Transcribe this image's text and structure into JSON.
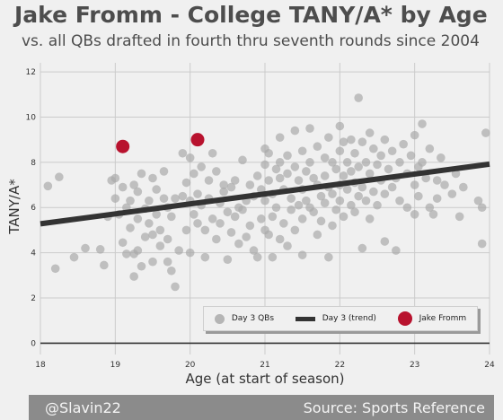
{
  "header": {
    "title": "Jake Fromm - College TANY/A* by Age",
    "subtitle": "vs. all QBs drafted in fourth thru seventh rounds since 2004"
  },
  "footer": {
    "handle": "@Slavin22",
    "source": "Source: Sports Reference"
  },
  "colors": {
    "background": "#f0f0f0",
    "grid": "#cbcbcb",
    "qb_points": "#aaaaaa",
    "trend_line": "#333333",
    "highlight": "#b8122e",
    "footer_bg": "#8b8b8b"
  },
  "chart_data": {
    "type": "scatter",
    "xlabel": "Age (at start of season)",
    "ylabel": "TANY/A*",
    "xlim": [
      18,
      24
    ],
    "ylim": [
      -0.5,
      12.4
    ],
    "x_ticks": [
      18,
      19,
      20,
      21,
      22,
      23,
      24
    ],
    "x_tick_labels": [
      "18",
      "19",
      "20",
      "21",
      "22",
      "23",
      "24"
    ],
    "y_ticks": [
      0,
      2,
      4,
      6,
      8,
      10,
      12
    ],
    "y_tick_labels": [
      "0",
      "2",
      "4",
      "6",
      "8",
      "10",
      "12"
    ],
    "grid": true,
    "legend_position": "bottom-right",
    "series": [
      {
        "name": "Day 3 QBs",
        "kind": "scatter",
        "points": [
          [
            18.1,
            6.95
          ],
          [
            18.2,
            3.3
          ],
          [
            18.25,
            7.35
          ],
          [
            18.45,
            3.8
          ],
          [
            18.6,
            4.2
          ],
          [
            18.8,
            4.15
          ],
          [
            18.85,
            3.45
          ],
          [
            18.9,
            5.6
          ],
          [
            18.95,
            7.2
          ],
          [
            19.0,
            6.4
          ],
          [
            19.0,
            7.3
          ],
          [
            19.05,
            5.7
          ],
          [
            19.1,
            6.9
          ],
          [
            19.1,
            4.45
          ],
          [
            19.15,
            6.0
          ],
          [
            19.15,
            3.95
          ],
          [
            19.2,
            6.3
          ],
          [
            19.2,
            5.1
          ],
          [
            19.25,
            7.0
          ],
          [
            19.25,
            3.95
          ],
          [
            19.25,
            2.95
          ],
          [
            19.3,
            5.5
          ],
          [
            19.3,
            6.7
          ],
          [
            19.3,
            4.1
          ],
          [
            19.35,
            7.5
          ],
          [
            19.35,
            3.4
          ],
          [
            19.4,
            5.95
          ],
          [
            19.4,
            4.7
          ],
          [
            19.45,
            6.3
          ],
          [
            19.45,
            5.3
          ],
          [
            19.5,
            7.3
          ],
          [
            19.5,
            3.6
          ],
          [
            19.5,
            4.8
          ],
          [
            19.55,
            5.7
          ],
          [
            19.55,
            6.8
          ],
          [
            19.6,
            4.3
          ],
          [
            19.6,
            5.0
          ],
          [
            19.65,
            7.6
          ],
          [
            19.65,
            6.4
          ],
          [
            19.7,
            6.0
          ],
          [
            19.7,
            4.6
          ],
          [
            19.7,
            3.6
          ],
          [
            19.75,
            5.6
          ],
          [
            19.75,
            3.2
          ],
          [
            19.8,
            6.4
          ],
          [
            19.8,
            2.5
          ],
          [
            19.85,
            4.1
          ],
          [
            19.9,
            8.4
          ],
          [
            19.9,
            6.5
          ],
          [
            19.95,
            5.0
          ],
          [
            19.95,
            7.1
          ],
          [
            20.0,
            8.2
          ],
          [
            20.0,
            6.3
          ],
          [
            20.0,
            4.0
          ],
          [
            20.05,
            5.7
          ],
          [
            20.05,
            7.5
          ],
          [
            20.1,
            6.6
          ],
          [
            20.1,
            5.3
          ],
          [
            20.15,
            7.8
          ],
          [
            20.15,
            6.1
          ],
          [
            20.2,
            5.0
          ],
          [
            20.2,
            3.8
          ],
          [
            20.25,
            7.2
          ],
          [
            20.25,
            6.4
          ],
          [
            20.3,
            5.5
          ],
          [
            20.3,
            8.4
          ],
          [
            20.35,
            7.6
          ],
          [
            20.35,
            4.6
          ],
          [
            20.4,
            6.2
          ],
          [
            20.4,
            5.3
          ],
          [
            20.45,
            7.0
          ],
          [
            20.45,
            6.7
          ],
          [
            20.5,
            5.8
          ],
          [
            20.5,
            3.7
          ],
          [
            20.55,
            6.9
          ],
          [
            20.55,
            4.9
          ],
          [
            20.6,
            7.2
          ],
          [
            20.6,
            5.6
          ],
          [
            20.65,
            4.4
          ],
          [
            20.65,
            6.0
          ],
          [
            20.7,
            8.1
          ],
          [
            20.7,
            5.9
          ],
          [
            20.75,
            4.7
          ],
          [
            20.75,
            6.3
          ],
          [
            20.8,
            7.0
          ],
          [
            20.8,
            5.2
          ],
          [
            20.85,
            6.5
          ],
          [
            20.85,
            4.1
          ],
          [
            20.9,
            7.4
          ],
          [
            20.9,
            3.8
          ],
          [
            20.95,
            6.8
          ],
          [
            20.95,
            5.5
          ],
          [
            21.0,
            8.6
          ],
          [
            21.0,
            7.9
          ],
          [
            21.0,
            6.3
          ],
          [
            21.0,
            5.0
          ],
          [
            21.05,
            8.4
          ],
          [
            21.05,
            7.2
          ],
          [
            21.05,
            4.8
          ],
          [
            21.1,
            6.6
          ],
          [
            21.1,
            5.6
          ],
          [
            21.1,
            3.8
          ],
          [
            21.15,
            7.7
          ],
          [
            21.15,
            6.0
          ],
          [
            21.2,
            9.1
          ],
          [
            21.2,
            8.0
          ],
          [
            21.2,
            7.3
          ],
          [
            21.2,
            4.6
          ],
          [
            21.25,
            6.8
          ],
          [
            21.25,
            5.3
          ],
          [
            21.3,
            8.3
          ],
          [
            21.3,
            7.5
          ],
          [
            21.3,
            4.3
          ],
          [
            21.35,
            6.4
          ],
          [
            21.35,
            5.9
          ],
          [
            21.4,
            9.4
          ],
          [
            21.4,
            7.8
          ],
          [
            21.4,
            5.0
          ],
          [
            21.45,
            7.2
          ],
          [
            21.45,
            6.1
          ],
          [
            21.5,
            8.5
          ],
          [
            21.5,
            6.8
          ],
          [
            21.5,
            5.5
          ],
          [
            21.5,
            3.9
          ],
          [
            21.55,
            7.6
          ],
          [
            21.55,
            6.3
          ],
          [
            21.6,
            9.5
          ],
          [
            21.6,
            8.0
          ],
          [
            21.6,
            6.0
          ],
          [
            21.65,
            7.3
          ],
          [
            21.65,
            5.8
          ],
          [
            21.7,
            8.7
          ],
          [
            21.7,
            7.0
          ],
          [
            21.7,
            4.8
          ],
          [
            21.75,
            6.5
          ],
          [
            21.75,
            5.4
          ],
          [
            21.8,
            8.2
          ],
          [
            21.8,
            7.4
          ],
          [
            21.8,
            6.2
          ],
          [
            21.85,
            9.1
          ],
          [
            21.85,
            6.9
          ],
          [
            21.85,
            3.8
          ],
          [
            21.9,
            8.0
          ],
          [
            21.9,
            6.6
          ],
          [
            21.9,
            5.2
          ],
          [
            21.95,
            7.7
          ],
          [
            21.95,
            5.9
          ],
          [
            22.0,
            9.6
          ],
          [
            22.0,
            8.5
          ],
          [
            22.0,
            7.0
          ],
          [
            22.0,
            6.3
          ],
          [
            22.05,
            8.9
          ],
          [
            22.05,
            7.4
          ],
          [
            22.05,
            5.6
          ],
          [
            22.1,
            8.0
          ],
          [
            22.1,
            6.8
          ],
          [
            22.15,
            9.0
          ],
          [
            22.15,
            7.6
          ],
          [
            22.15,
            6.1
          ],
          [
            22.2,
            8.4
          ],
          [
            22.2,
            7.1
          ],
          [
            22.2,
            5.8
          ],
          [
            22.25,
            10.85
          ],
          [
            22.25,
            7.8
          ],
          [
            22.25,
            6.5
          ],
          [
            22.3,
            8.9
          ],
          [
            22.3,
            6.9
          ],
          [
            22.3,
            4.2
          ],
          [
            22.35,
            8.0
          ],
          [
            22.35,
            6.3
          ],
          [
            22.4,
            9.3
          ],
          [
            22.4,
            7.5
          ],
          [
            22.4,
            5.5
          ],
          [
            22.45,
            8.6
          ],
          [
            22.45,
            6.7
          ],
          [
            22.5,
            7.9
          ],
          [
            22.5,
            6.1
          ],
          [
            22.55,
            8.3
          ],
          [
            22.55,
            7.2
          ],
          [
            22.6,
            9.0
          ],
          [
            22.6,
            6.6
          ],
          [
            22.6,
            4.5
          ],
          [
            22.65,
            7.7
          ],
          [
            22.7,
            8.5
          ],
          [
            22.7,
            6.9
          ],
          [
            22.75,
            7.3
          ],
          [
            22.75,
            4.1
          ],
          [
            22.8,
            8.0
          ],
          [
            22.8,
            6.3
          ],
          [
            22.85,
            8.8
          ],
          [
            22.9,
            7.5
          ],
          [
            22.9,
            6.0
          ],
          [
            22.95,
            8.3
          ],
          [
            23.0,
            9.2
          ],
          [
            23.0,
            7.0
          ],
          [
            23.0,
            5.7
          ],
          [
            23.05,
            7.8
          ],
          [
            23.05,
            6.5
          ],
          [
            23.1,
            9.7
          ],
          [
            23.1,
            8.0
          ],
          [
            23.15,
            7.3
          ],
          [
            23.2,
            8.6
          ],
          [
            23.2,
            6.0
          ],
          [
            23.25,
            5.7
          ],
          [
            23.3,
            7.2
          ],
          [
            23.3,
            6.4
          ],
          [
            23.35,
            8.2
          ],
          [
            23.4,
            7.0
          ],
          [
            23.5,
            6.6
          ],
          [
            23.55,
            7.5
          ],
          [
            23.6,
            5.6
          ],
          [
            23.65,
            6.9
          ],
          [
            23.85,
            6.3
          ],
          [
            23.9,
            4.4
          ],
          [
            23.9,
            6.0
          ],
          [
            23.95,
            9.3
          ]
        ]
      },
      {
        "name": "Day 3 (trend)",
        "kind": "line",
        "x": [
          18,
          24
        ],
        "y": [
          5.28,
          7.92
        ]
      },
      {
        "name": "Jake Fromm",
        "kind": "highlight",
        "points": [
          [
            19.1,
            8.7
          ],
          [
            20.1,
            9.0
          ]
        ]
      }
    ]
  }
}
